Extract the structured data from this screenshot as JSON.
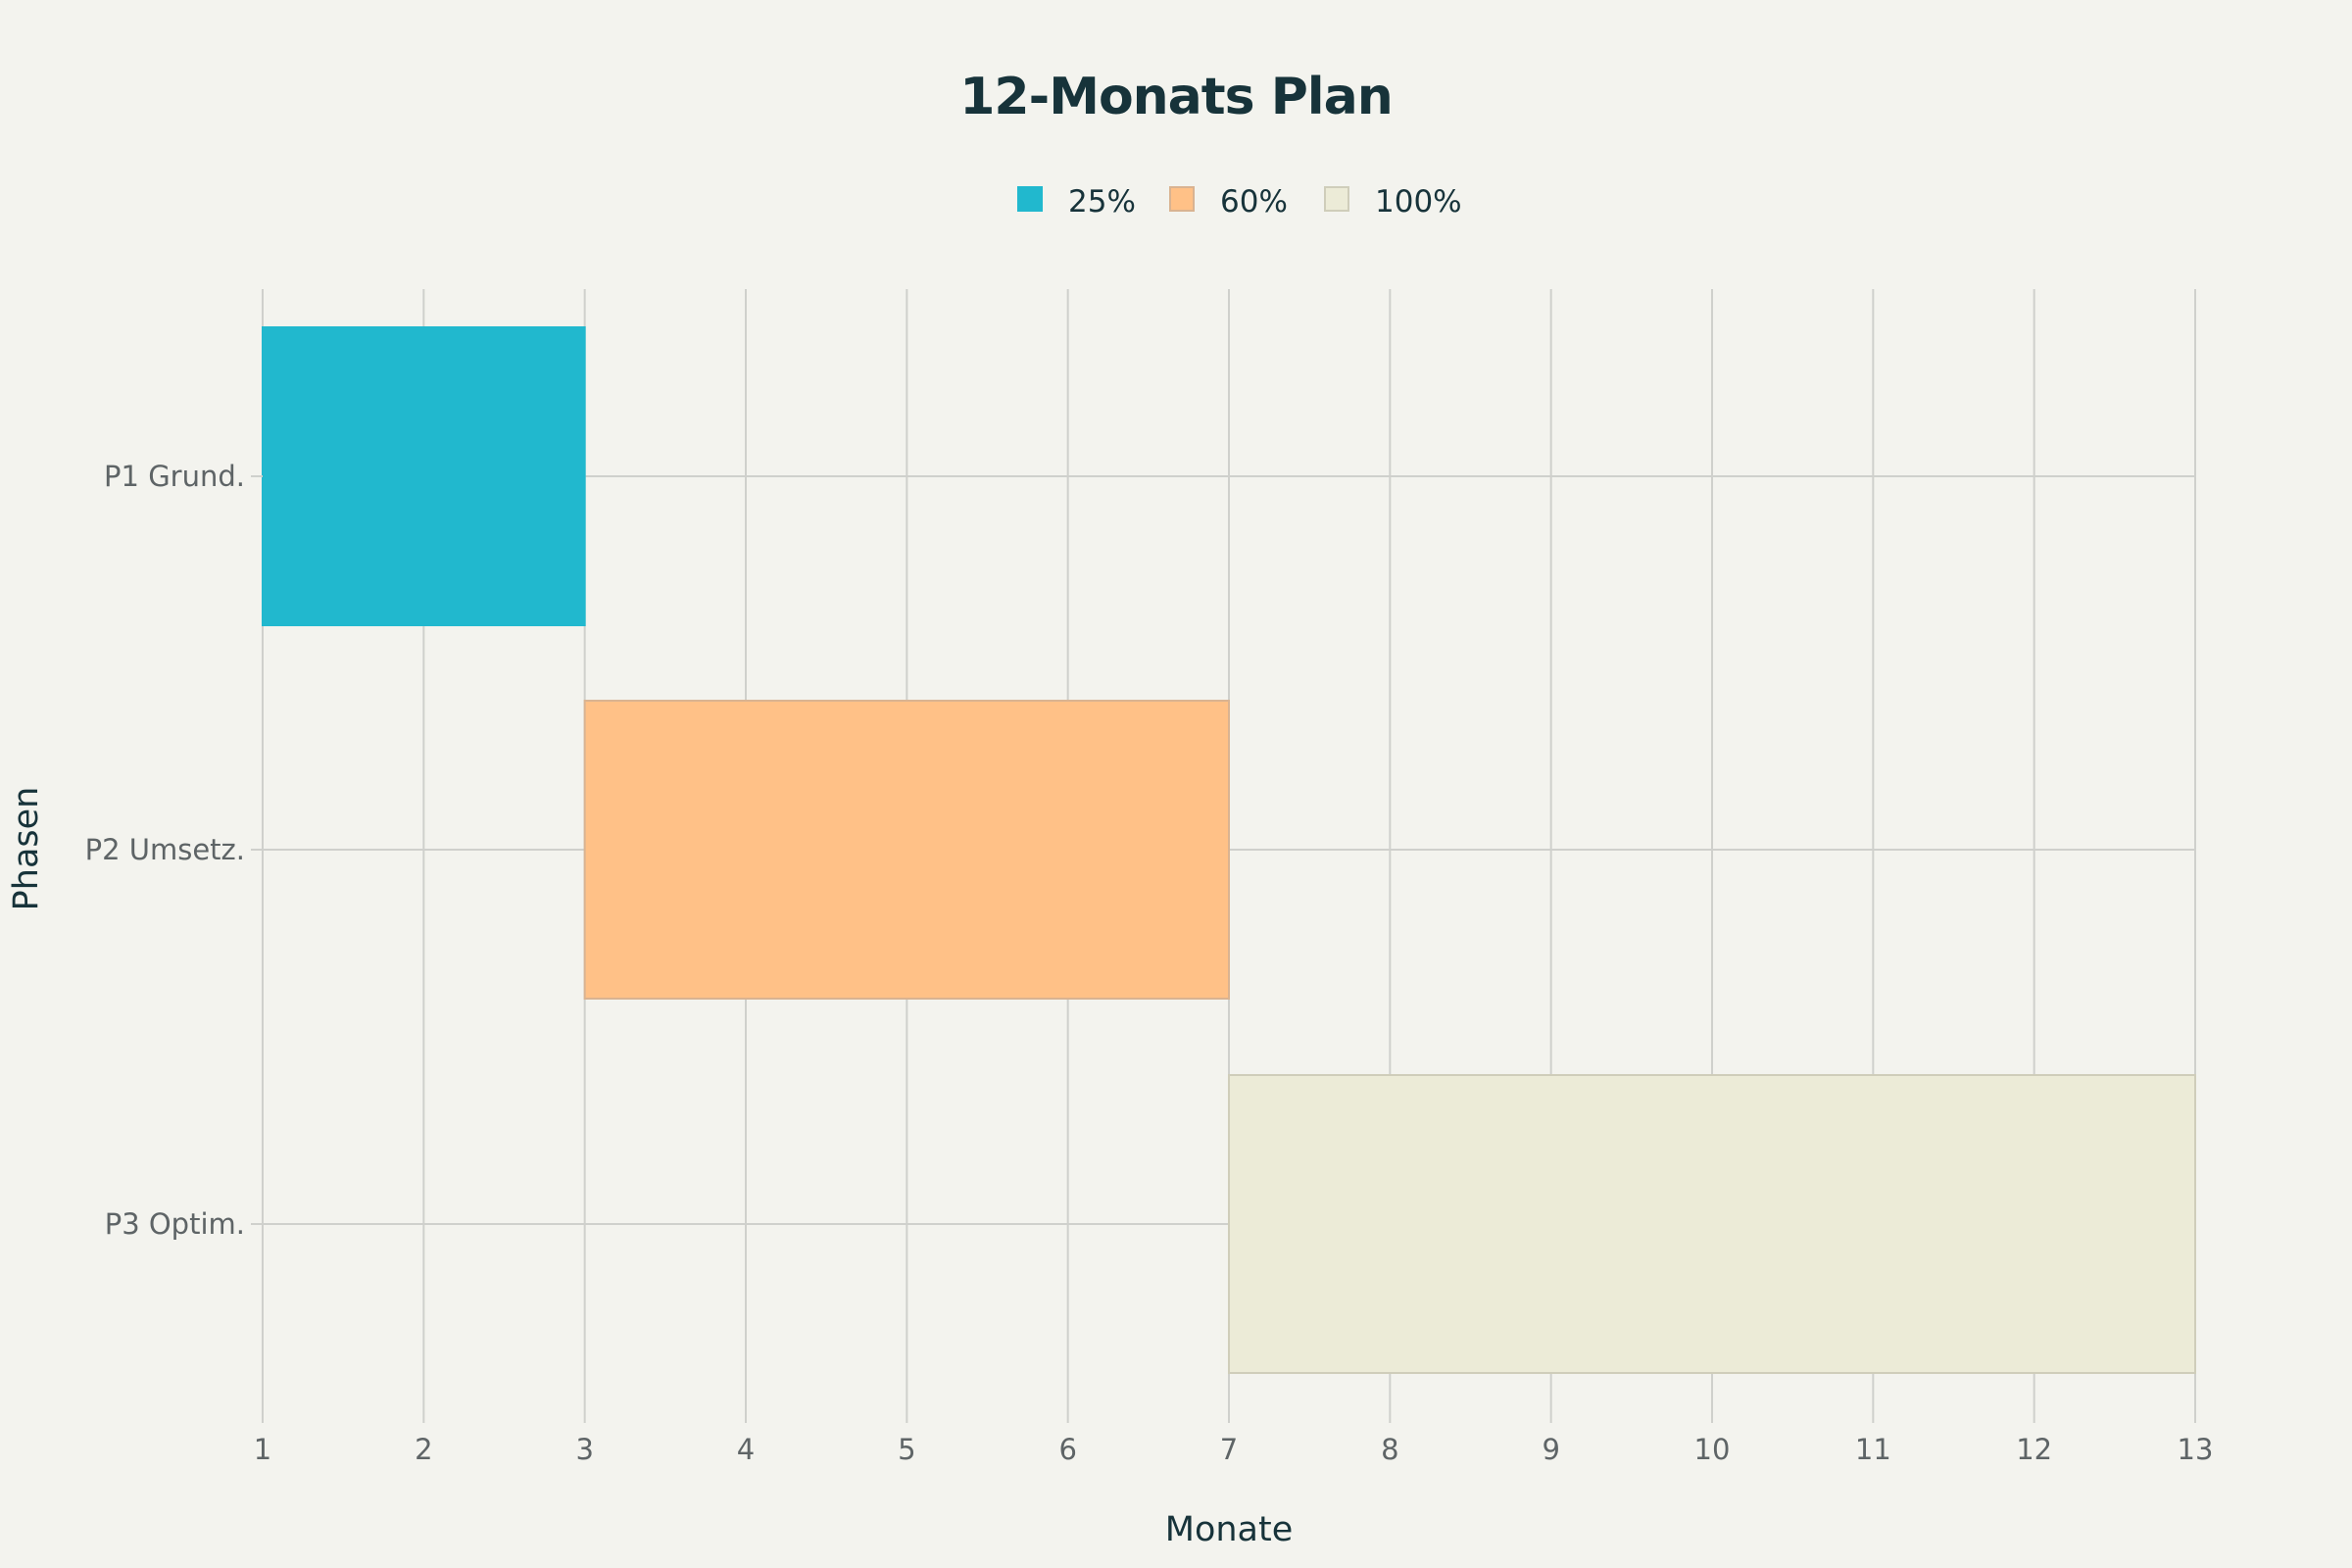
{
  "chart_data": {
    "type": "bar",
    "orientation": "horizontal-timeline",
    "title": "12-Monats Plan",
    "xlabel": "Monate",
    "ylabel": "Phasen",
    "xlim": [
      1,
      13
    ],
    "x_ticks": [
      "1",
      "2",
      "3",
      "4",
      "5",
      "6",
      "7",
      "8",
      "9",
      "10",
      "11",
      "12",
      "13"
    ],
    "categories": [
      "P1 Grund.",
      "P2 Umsetz.",
      "P3 Optim."
    ],
    "series": [
      {
        "name": "25%",
        "category": "P1 Grund.",
        "start": 1,
        "end": 3,
        "color": "#21b8ce",
        "stroke": "#21b8ce"
      },
      {
        "name": "60%",
        "category": "P2 Umsetz.",
        "start": 3,
        "end": 7,
        "color": "#ffc187",
        "stroke": "#d9b391"
      },
      {
        "name": "100%",
        "category": "P3 Optim.",
        "start": 7,
        "end": 13,
        "color": "#ecebd7",
        "stroke": "#cfcdba"
      }
    ],
    "grid": true,
    "legend": "top-center"
  }
}
